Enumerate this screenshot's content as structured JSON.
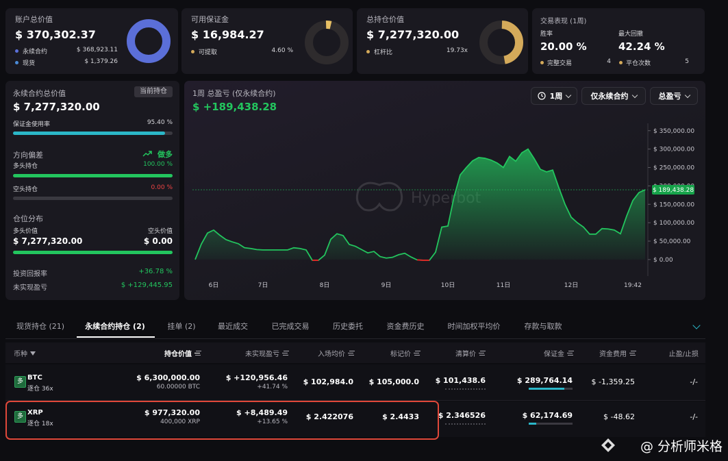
{
  "cards": [
    {
      "title": "账户总价值",
      "value": "$ 370,302.37",
      "items": [
        {
          "label": "永续合约",
          "value": "$ 368,923.11"
        },
        {
          "label": "现货",
          "value": "$ 1,379.26"
        }
      ]
    },
    {
      "title": "可用保证金",
      "value": "$ 16,984.27",
      "items": [
        {
          "label": "可提取",
          "value": "4.60 %"
        }
      ]
    },
    {
      "title": "总持仓价值",
      "value": "$ 7,277,320.00",
      "items": [
        {
          "label": "杠杆比",
          "value": "19.73x"
        }
      ]
    }
  ],
  "performance": {
    "title": "交易表现 (1周)",
    "stats": [
      {
        "label": "胜率",
        "value": "20.00 %"
      },
      {
        "label": "最大回撤",
        "value": "42.24 %"
      }
    ],
    "counts": [
      {
        "label": "完整交易",
        "value": "4"
      },
      {
        "label": "平仓次数",
        "value": "5"
      }
    ]
  },
  "perp_panel": {
    "title": "永续合约总价值",
    "badge": "当前持仓",
    "value": "$ 7,277,320.00",
    "margin_usage": {
      "label": "保证金使用率",
      "value": "95.40 %"
    },
    "bias": {
      "label": "方向偏差",
      "value": "做多"
    },
    "long": {
      "label": "多头持仓",
      "value": "100.00 %"
    },
    "short": {
      "label": "空头持仓",
      "value": "0.00 %"
    },
    "distribution": {
      "title": "仓位分布",
      "long_label": "多头价值",
      "long_value": "$ 7,277,320.00",
      "short_label": "空头价值",
      "short_value": "$ 0.00"
    },
    "roi": {
      "label": "投资回报率",
      "value": "+36.78 %"
    },
    "upnl": {
      "label": "未实现盈亏",
      "value": "$ +129,445.95"
    }
  },
  "chart_panel": {
    "controls": [
      "1周",
      "仅永续合约",
      "总盈亏"
    ],
    "watermark": "Hyperbot"
  },
  "chart_data": {
    "type": "area",
    "title": "1周 总盈亏 (仅永续合约)",
    "total_label": "$ +189,438.28",
    "current_label": "$ 189,438.28",
    "color": "#23c55e",
    "negative_color": "#dc2626",
    "categories": [
      null,
      null,
      null,
      "6日",
      null,
      null,
      null,
      null,
      null,
      null,
      null,
      "7日",
      null,
      null,
      null,
      null,
      null,
      null,
      null,
      null,
      null,
      "8日",
      null,
      null,
      null,
      null,
      null,
      null,
      null,
      null,
      null,
      "9日",
      null,
      null,
      null,
      null,
      null,
      null,
      null,
      null,
      null,
      "10日",
      null,
      null,
      null,
      null,
      null,
      null,
      null,
      null,
      "11日",
      null,
      null,
      null,
      null,
      null,
      null,
      null,
      null,
      null,
      null,
      "12日",
      null,
      null,
      null,
      null,
      null,
      null,
      null,
      null,
      null,
      "19:42",
      null,
      null
    ],
    "values": [
      0,
      42000,
      72000,
      80000,
      66000,
      54000,
      48000,
      43000,
      32000,
      30000,
      27000,
      26000,
      26000,
      26000,
      26000,
      26000,
      32000,
      30000,
      26000,
      -2000,
      -2000,
      12000,
      55000,
      70000,
      65000,
      41000,
      36000,
      27000,
      18000,
      22000,
      8000,
      4000,
      6000,
      13000,
      17000,
      7000,
      -1000,
      -2000,
      -2000,
      20000,
      88000,
      91000,
      170000,
      230000,
      250000,
      268000,
      277000,
      275000,
      270000,
      262000,
      250000,
      280000,
      267000,
      290000,
      300000,
      274000,
      245000,
      238000,
      243000,
      195000,
      150000,
      115000,
      100000,
      88000,
      69000,
      69000,
      84000,
      83000,
      80000,
      70000,
      118000,
      160000,
      182000,
      189438.28
    ],
    "ylim": [
      -30000,
      370000
    ],
    "yticks": [
      {
        "value": 0,
        "label": "$ 0.00"
      },
      {
        "value": 50000,
        "label": "$ 50,000.00"
      },
      {
        "value": 100000,
        "label": "$ 100,000.00"
      },
      {
        "value": 150000,
        "label": "$ 150,000.00"
      },
      {
        "value": 200000,
        "label": "$ 200,000.00"
      },
      {
        "value": 250000,
        "label": "$ 250,000.00"
      },
      {
        "value": 300000,
        "label": "$ 300,000.00"
      },
      {
        "value": 350000,
        "label": "$ 350,000.00"
      }
    ]
  },
  "tabs": [
    "现货持仓 (21)",
    "永续合约持仓 (2)",
    "挂单 (2)",
    "最近成交",
    "已完成交易",
    "历史委托",
    "资金费历史",
    "时间加权平均价",
    "存款与取款"
  ],
  "table": {
    "headers": [
      "币种",
      "持仓价值",
      "未实现盈亏",
      "入场均价",
      "标记价",
      "清算价",
      "保证金",
      "资金费用",
      "止盈/止损"
    ],
    "rows": [
      {
        "side": "多",
        "coin": "BTC",
        "mode": "逐仓 36x",
        "value": "$ 6,300,000.00",
        "size": "60.00000 BTC",
        "pnl": "$ +120,956.46",
        "pnl_pct": "+41.74 %",
        "entry": "$ 102,984.0",
        "mark": "$ 105,000.0",
        "liq": "$ 101,438.6",
        "margin": "$ 289,764.14",
        "funding": "$ -1,359.25",
        "tpsl": "-/-"
      },
      {
        "side": "多",
        "coin": "XRP",
        "mode": "逐仓 18x",
        "value": "$ 977,320.00",
        "size": "400,000 XRP",
        "pnl": "$ +8,489.49",
        "pnl_pct": "+13.65 %",
        "entry": "$ 2.422076",
        "mark": "$ 2.4433",
        "liq": "$ 2.346526",
        "margin": "$ 62,174.69",
        "funding": "$ -48.62",
        "tpsl": "-/-"
      }
    ]
  },
  "footer": "@ 分析师米格"
}
